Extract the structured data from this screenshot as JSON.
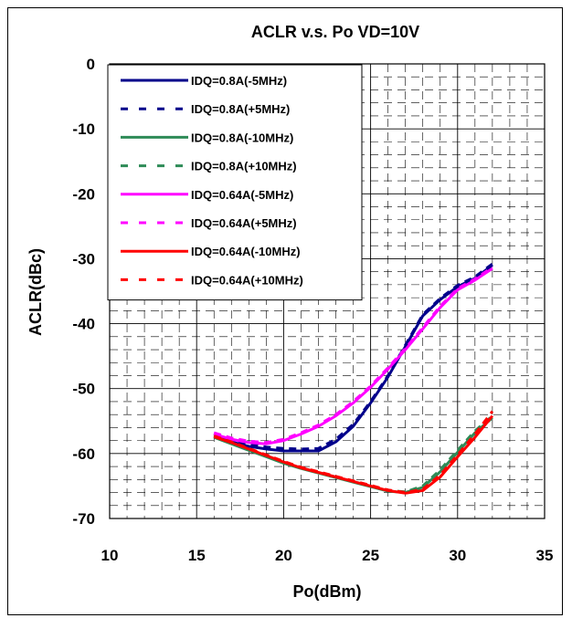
{
  "chart_data": {
    "type": "line",
    "title": "ACLR  v.s.  Po    VD=10V",
    "xlabel": "Po(dBm)",
    "ylabel": "ACLR(dBc)",
    "xlim": [
      10,
      35
    ],
    "ylim": [
      -70,
      0
    ],
    "xticks": [
      "10",
      "15",
      "20",
      "25",
      "30",
      "35"
    ],
    "yticks": [
      "0",
      "-10",
      "-20",
      "-30",
      "-40",
      "-50",
      "-60",
      "-70"
    ],
    "grid": true,
    "legend_position": "top-left",
    "series": [
      {
        "name": "IDQ=0.8A(-5MHz)",
        "color": "#00008B",
        "dash": "solid",
        "x": [
          16,
          17,
          18,
          19,
          20,
          21,
          22,
          23,
          24,
          25,
          26,
          27,
          28,
          29,
          30,
          31,
          32
        ],
        "y": [
          -57.3,
          -58.2,
          -58.9,
          -59.3,
          -59.6,
          -59.6,
          -59.6,
          -58.2,
          -55.8,
          -52.2,
          -48.2,
          -43.5,
          -38.8,
          -36.3,
          -34.3,
          -33.0,
          -31.0
        ]
      },
      {
        "name": "IDQ=0.8A(+5MHz)",
        "color": "#00008B",
        "dash": "dashed",
        "x": [
          16,
          17,
          18,
          19,
          20,
          21,
          22,
          23,
          24,
          25,
          26,
          27,
          28,
          29,
          30,
          31,
          32
        ],
        "y": [
          -57.0,
          -57.9,
          -58.6,
          -59.0,
          -59.2,
          -59.3,
          -59.2,
          -57.8,
          -55.5,
          -52.0,
          -48.0,
          -43.3,
          -38.6,
          -36.1,
          -34.1,
          -32.8,
          -30.8
        ]
      },
      {
        "name": "IDQ=0.8A(-10MHz)",
        "color": "#2E8B57",
        "dash": "solid",
        "x": [
          16,
          17,
          18,
          19,
          20,
          21,
          22,
          23,
          24,
          25,
          26,
          27,
          28,
          29,
          30,
          31,
          32
        ],
        "y": [
          -57.5,
          -58.5,
          -59.5,
          -60.5,
          -61.5,
          -62.3,
          -63.0,
          -63.7,
          -64.4,
          -65.1,
          -65.8,
          -66.0,
          -65.2,
          -62.8,
          -59.8,
          -56.8,
          -54.5
        ]
      },
      {
        "name": "IDQ=0.8A(+10MHz)",
        "color": "#2E8B57",
        "dash": "dashed",
        "x": [
          16,
          17,
          18,
          19,
          20,
          21,
          22,
          23,
          24,
          25,
          26,
          27,
          28,
          29,
          30,
          31,
          32
        ],
        "y": [
          -57.4,
          -58.4,
          -59.4,
          -60.4,
          -61.4,
          -62.2,
          -62.9,
          -63.6,
          -64.3,
          -65.0,
          -65.7,
          -65.9,
          -65.0,
          -62.5,
          -59.5,
          -56.5,
          -54.2
        ]
      },
      {
        "name": "IDQ=0.64A(-5MHz)",
        "color": "#FF00FF",
        "dash": "solid",
        "x": [
          16,
          17,
          18,
          19,
          20,
          21,
          22,
          23,
          24,
          25,
          26,
          27,
          28,
          29,
          30,
          31,
          32
        ],
        "y": [
          -57.0,
          -57.8,
          -58.3,
          -58.5,
          -58.0,
          -57.0,
          -55.8,
          -54.2,
          -52.2,
          -49.8,
          -47.0,
          -44.0,
          -40.8,
          -37.5,
          -34.8,
          -33.3,
          -31.5
        ]
      },
      {
        "name": "IDQ=0.64A(+5MHz)",
        "color": "#FF00FF",
        "dash": "dashed",
        "x": [
          16,
          17,
          18,
          19,
          20,
          21,
          22,
          23,
          24,
          25,
          26,
          27,
          28,
          29,
          30,
          31,
          32
        ],
        "y": [
          -56.8,
          -57.6,
          -58.1,
          -58.3,
          -57.8,
          -56.8,
          -55.6,
          -54.0,
          -52.0,
          -49.6,
          -46.8,
          -43.8,
          -40.6,
          -37.3,
          -34.6,
          -33.1,
          -31.3
        ]
      },
      {
        "name": "IDQ=0.64A(-10MHz)",
        "color": "#FF0000",
        "dash": "solid",
        "x": [
          16,
          17,
          18,
          19,
          20,
          21,
          22,
          23,
          24,
          25,
          26,
          27,
          28,
          29,
          30,
          31,
          32
        ],
        "y": [
          -57.4,
          -58.3,
          -59.3,
          -60.3,
          -61.3,
          -62.2,
          -62.9,
          -63.6,
          -64.3,
          -65.0,
          -65.7,
          -66.1,
          -65.7,
          -63.6,
          -60.5,
          -57.5,
          -54.2
        ]
      },
      {
        "name": "IDQ=0.64A(+10MHz)",
        "color": "#FF0000",
        "dash": "dashed",
        "x": [
          16,
          17,
          18,
          19,
          20,
          21,
          22,
          23,
          24,
          25,
          26,
          27,
          28,
          29,
          30,
          31,
          32
        ],
        "y": [
          -57.3,
          -58.2,
          -59.2,
          -60.2,
          -61.2,
          -62.1,
          -62.8,
          -63.5,
          -64.2,
          -64.9,
          -65.6,
          -66.0,
          -65.5,
          -63.3,
          -60.2,
          -57.0,
          -53.5
        ]
      }
    ]
  }
}
